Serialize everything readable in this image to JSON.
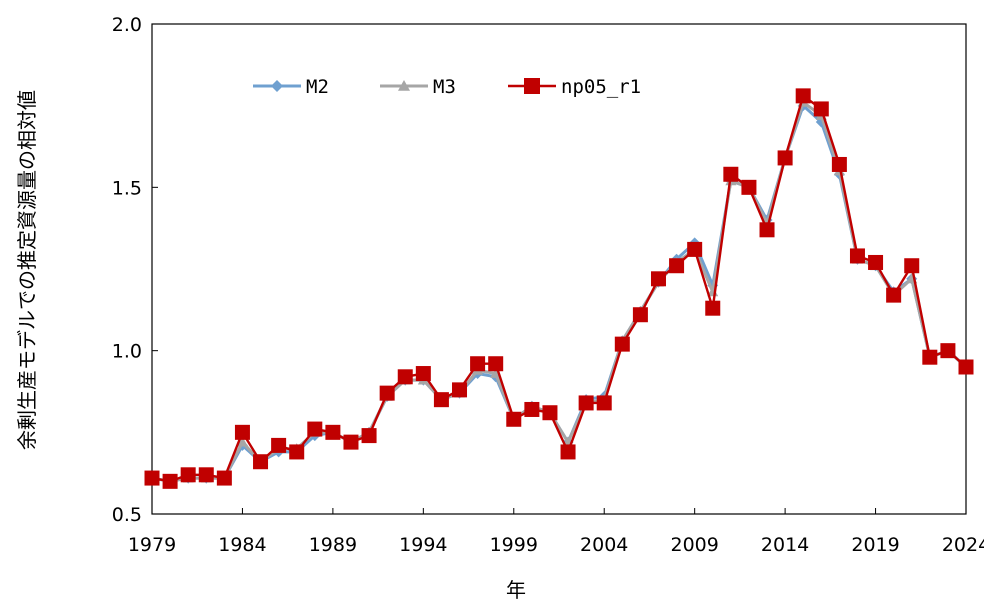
{
  "chart_data": {
    "type": "line",
    "title": "",
    "xlabel": "年",
    "ylabel": "余剰生産モデルでの推定資源量の相対値",
    "xlim": [
      1979,
      2024
    ],
    "ylim": [
      0.5,
      2.0
    ],
    "x_ticks": [
      "1979",
      "1984",
      "1989",
      "1994",
      "1999",
      "2004",
      "2009",
      "2014",
      "2019",
      "2024"
    ],
    "y_ticks": [
      "0.5",
      "1.0",
      "1.5",
      "2.0"
    ],
    "grid": false,
    "legend_position": "top-left",
    "x": [
      1979,
      1980,
      1981,
      1982,
      1983,
      1984,
      1985,
      1986,
      1987,
      1988,
      1989,
      1990,
      1991,
      1992,
      1993,
      1994,
      1995,
      1996,
      1997,
      1998,
      1999,
      2000,
      2001,
      2002,
      2003,
      2004,
      2005,
      2006,
      2007,
      2008,
      2009,
      2010,
      2011,
      2012,
      2013,
      2014,
      2015,
      2016,
      2017,
      2018,
      2019,
      2020,
      2021,
      2022,
      2023,
      2024
    ],
    "series": [
      {
        "name": "M2",
        "color": "#6fa0d0",
        "marker": "diamond",
        "values": [
          0.61,
          0.6,
          0.61,
          0.61,
          0.61,
          0.71,
          0.66,
          0.69,
          0.69,
          0.74,
          0.75,
          0.72,
          0.75,
          0.86,
          0.91,
          0.91,
          0.85,
          0.87,
          0.93,
          0.92,
          0.79,
          0.83,
          0.81,
          0.72,
          0.85,
          0.86,
          1.03,
          1.12,
          1.21,
          1.28,
          1.33,
          1.2,
          1.52,
          1.5,
          1.4,
          1.59,
          1.75,
          1.7,
          1.54,
          1.28,
          1.26,
          1.18,
          1.22,
          0.98,
          1.0,
          0.95
        ]
      },
      {
        "name": "M3",
        "color": "#a6a6a6",
        "marker": "triangle",
        "values": [
          0.61,
          0.6,
          0.61,
          0.61,
          0.61,
          0.72,
          0.66,
          0.7,
          0.7,
          0.75,
          0.75,
          0.72,
          0.75,
          0.86,
          0.91,
          0.91,
          0.85,
          0.87,
          0.94,
          0.93,
          0.79,
          0.83,
          0.81,
          0.72,
          0.84,
          0.85,
          1.03,
          1.12,
          1.21,
          1.27,
          1.31,
          1.18,
          1.52,
          1.5,
          1.39,
          1.59,
          1.76,
          1.72,
          1.55,
          1.28,
          1.26,
          1.17,
          1.22,
          0.98,
          1.0,
          0.95
        ]
      },
      {
        "name": "np05_r1",
        "color": "#c00000",
        "marker": "square",
        "values": [
          0.61,
          0.6,
          0.62,
          0.62,
          0.61,
          0.75,
          0.66,
          0.71,
          0.69,
          0.76,
          0.75,
          0.72,
          0.74,
          0.87,
          0.92,
          0.93,
          0.85,
          0.88,
          0.96,
          0.96,
          0.79,
          0.82,
          0.81,
          0.69,
          0.84,
          0.84,
          1.02,
          1.11,
          1.22,
          1.26,
          1.31,
          1.13,
          1.54,
          1.5,
          1.37,
          1.59,
          1.78,
          1.74,
          1.57,
          1.29,
          1.27,
          1.17,
          1.26,
          0.98,
          1.0,
          0.95
        ]
      }
    ]
  }
}
